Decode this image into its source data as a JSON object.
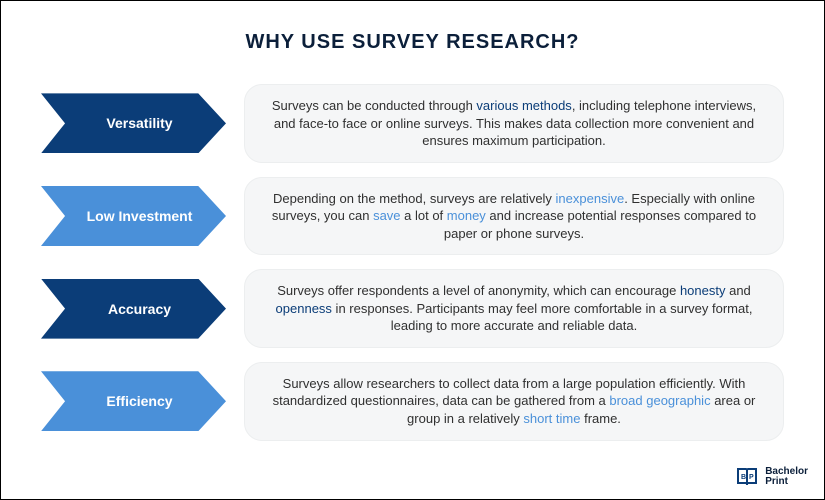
{
  "title": "WHY USE SURVEY RESEARCH?",
  "title_fontsize": 20,
  "title_color": "#0b1f3a",
  "colors": {
    "dark": "#0b3d78",
    "light": "#4a90d9",
    "hl_dark": "#0b3d78",
    "hl_light": "#4a90d9",
    "desc_bg": "#f5f6f7",
    "desc_border": "#eceeef",
    "desc_text": "#303030",
    "background": "#ffffff"
  },
  "rows": [
    {
      "label": "Versatility",
      "arrow_color": "#0b3d78",
      "hl_color": "#0b3d78",
      "parts": [
        {
          "t": "Surveys can be conducted through ",
          "hl": false
        },
        {
          "t": "various methods",
          "hl": true
        },
        {
          "t": ", including telephone interviews, and face-to face or online surveys. This makes data collection more convenient and ensures maximum participation.",
          "hl": false
        }
      ]
    },
    {
      "label": "Low Investment",
      "arrow_color": "#4a90d9",
      "hl_color": "#4a90d9",
      "parts": [
        {
          "t": "Depending on the method, surveys are relatively ",
          "hl": false
        },
        {
          "t": "inexpensive",
          "hl": true
        },
        {
          "t": ". Especially with online surveys, you can ",
          "hl": false
        },
        {
          "t": "save",
          "hl": true
        },
        {
          "t": " a lot of ",
          "hl": false
        },
        {
          "t": "money",
          "hl": true
        },
        {
          "t": " and increase potential responses compared to paper or phone surveys.",
          "hl": false
        }
      ]
    },
    {
      "label": "Accuracy",
      "arrow_color": "#0b3d78",
      "hl_color": "#0b3d78",
      "parts": [
        {
          "t": "Surveys offer respondents a level of anonymity, which can encourage ",
          "hl": false
        },
        {
          "t": "honesty",
          "hl": true
        },
        {
          "t": " and ",
          "hl": false
        },
        {
          "t": "openness",
          "hl": true
        },
        {
          "t": " in responses. Participants may feel more comfortable in a survey format, leading to more accurate and reliable data.",
          "hl": false
        }
      ]
    },
    {
      "label": "Efficiency",
      "arrow_color": "#4a90d9",
      "hl_color": "#4a90d9",
      "parts": [
        {
          "t": "Surveys allow researchers to collect data from a large population efficiently. With standardized questionnaires, data can be gathered from a ",
          "hl": false
        },
        {
          "t": "broad geographic",
          "hl": true
        },
        {
          "t": " area or group in a relatively ",
          "hl": false
        },
        {
          "t": "short time",
          "hl": true
        },
        {
          "t": " frame.",
          "hl": false
        }
      ]
    }
  ],
  "logo": {
    "line1": "Bachelor",
    "line2": "Print",
    "color": "#0b1f3a"
  }
}
